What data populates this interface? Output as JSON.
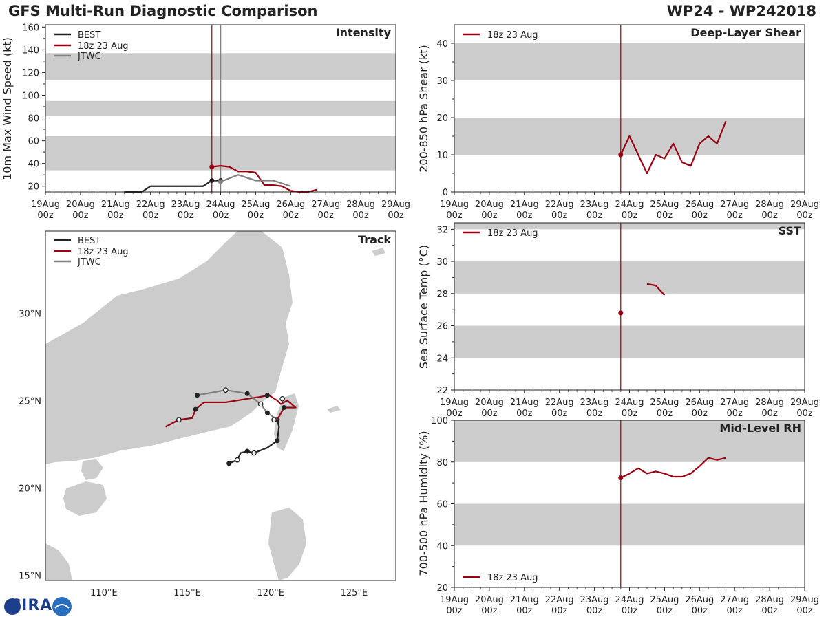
{
  "header": {
    "title": "GFS Multi-Run Diagnostic Comparison",
    "storm": "WP24 - WP242018"
  },
  "logo": {
    "text": "CIRA"
  },
  "time_axis": {
    "labels": [
      [
        "19Aug",
        "00z"
      ],
      [
        "20Aug",
        "00z"
      ],
      [
        "21Aug",
        "00z"
      ],
      [
        "22Aug",
        "00z"
      ],
      [
        "23Aug",
        "00z"
      ],
      [
        "24Aug",
        "00z"
      ],
      [
        "25Aug",
        "00z"
      ],
      [
        "26Aug",
        "00z"
      ],
      [
        "27Aug",
        "00z"
      ],
      [
        "28Aug",
        "00z"
      ],
      [
        "29Aug",
        "00z"
      ]
    ],
    "init_day": 4.75,
    "jtwc_day": 5.0
  },
  "legend": {
    "best": "BEST",
    "run": "18z 23 Aug",
    "jtwc": "JTWC"
  },
  "colors": {
    "best": "#222222",
    "run": "#990011",
    "jtwc": "#808080",
    "band": "#cccccc",
    "land": "#cccccc"
  },
  "chart_data": [
    {
      "name": "intensity",
      "type": "line",
      "title": "Intensity",
      "ylabel": "10m Max Wind Speed (kt)",
      "xlim": [
        0,
        10
      ],
      "ylim": [
        15,
        162
      ],
      "yticks": [
        20,
        40,
        60,
        80,
        100,
        120,
        140,
        160
      ],
      "bands": [
        [
          34,
          64
        ],
        [
          82,
          95
        ],
        [
          113,
          137
        ]
      ],
      "series": [
        {
          "name": "BEST",
          "color": "#222222",
          "x": [
            2.25,
            2.75,
            3.0,
            3.5,
            4.0,
            4.5,
            4.75,
            5.0
          ],
          "y": [
            15,
            15,
            20,
            20,
            20,
            20,
            25,
            25
          ],
          "markers": [
            4.75,
            5.0
          ]
        },
        {
          "name": "18z 23 Aug",
          "color": "#990011",
          "x": [
            4.75,
            5.0,
            5.25,
            5.5,
            5.75,
            6.0,
            6.25,
            6.5,
            6.75,
            7.0,
            7.25,
            7.5,
            7.75
          ],
          "y": [
            37,
            38,
            37,
            33,
            33,
            32,
            21,
            21,
            20,
            16,
            15,
            15,
            17
          ],
          "markers": [
            4.75
          ]
        },
        {
          "name": "JTWC",
          "color": "#808080",
          "x": [
            5.0,
            5.5,
            6.0,
            6.5,
            7.0
          ],
          "y": [
            24,
            30,
            25,
            25,
            20
          ],
          "markers": [
            5.0
          ]
        }
      ]
    },
    {
      "name": "shear",
      "type": "line",
      "title": "Deep-Layer Shear",
      "ylabel": "200-850 hPa Shear (kt)",
      "xlim": [
        0,
        10
      ],
      "ylim": [
        0,
        45
      ],
      "yticks": [
        0,
        10,
        20,
        30,
        40
      ],
      "bands": [
        [
          10,
          20
        ],
        [
          30,
          40
        ]
      ],
      "series": [
        {
          "name": "18z 23 Aug",
          "color": "#990011",
          "x": [
            4.75,
            5.0,
            5.25,
            5.5,
            5.75,
            6.0,
            6.25,
            6.5,
            6.75,
            7.0,
            7.25,
            7.5,
            7.75
          ],
          "y": [
            10,
            15,
            10,
            5,
            10,
            9,
            13,
            8,
            7,
            13,
            15,
            13,
            19
          ],
          "markers": [
            4.75
          ]
        }
      ]
    },
    {
      "name": "sst",
      "type": "line",
      "title": "SST",
      "ylabel": "Sea Surface Temp (°C)",
      "xlim": [
        0,
        10
      ],
      "ylim": [
        22,
        32.4
      ],
      "yticks": [
        22,
        24,
        26,
        28,
        30,
        32
      ],
      "bands": [
        [
          24,
          26
        ],
        [
          28,
          30
        ],
        [
          32,
          32.4
        ]
      ],
      "series": [
        {
          "name": "18z 23 Aug",
          "color": "#990011",
          "x": [
            4.75
          ],
          "y": [
            26.8
          ],
          "markers": [
            4.75
          ]
        },
        {
          "name": "18z 23 Aug (segment)",
          "color": "#990011",
          "x": [
            5.5,
            5.75,
            6.0
          ],
          "y": [
            28.6,
            28.5,
            27.9
          ],
          "markers": []
        }
      ]
    },
    {
      "name": "rh",
      "type": "line",
      "title": "Mid-Level RH",
      "ylabel": "700-500 hPa Humidity (%)",
      "xlim": [
        0,
        10
      ],
      "ylim": [
        20,
        100
      ],
      "yticks": [
        20,
        40,
        60,
        80,
        100
      ],
      "bands": [
        [
          40,
          60
        ],
        [
          80,
          100
        ]
      ],
      "series": [
        {
          "name": "18z 23 Aug",
          "color": "#990011",
          "x": [
            4.75,
            5.0,
            5.25,
            5.5,
            5.75,
            6.0,
            6.25,
            6.5,
            6.75,
            7.0,
            7.25,
            7.5,
            7.75
          ],
          "y": [
            72.5,
            74.5,
            77,
            74.5,
            75.5,
            74.5,
            73,
            73,
            74.5,
            78,
            82,
            81,
            82
          ],
          "markers": [
            4.75
          ]
        }
      ]
    },
    {
      "name": "track",
      "type": "scatter",
      "title": "Track",
      "xlim": [
        106.5,
        127.5
      ],
      "ylim": [
        14.7,
        34.7
      ],
      "xticks": [
        110,
        115,
        120,
        125
      ],
      "xtick_labels": [
        "110°E",
        "115°E",
        "120°E",
        "125°E"
      ],
      "yticks": [
        15,
        20,
        25,
        30
      ],
      "ytick_labels": [
        "15°N",
        "20°N",
        "25°N",
        "30°N"
      ],
      "series": [
        {
          "name": "BEST",
          "color": "#222222",
          "points": [
            [
              117.5,
              21.4
            ],
            [
              118.0,
              21.6
            ],
            [
              118.2,
              22.0
            ],
            [
              118.6,
              22.1
            ],
            [
              119.0,
              22.0
            ],
            [
              119.8,
              22.3
            ],
            [
              120.4,
              22.7
            ],
            [
              120.5,
              23.5
            ],
            [
              120.4,
              23.9
            ]
          ],
          "filled": [
            [
              117.5,
              21.4
            ],
            [
              118.6,
              22.1
            ],
            [
              120.4,
              22.7
            ],
            [
              120.4,
              23.9
            ]
          ],
          "open": [
            [
              118.0,
              21.6
            ],
            [
              119.0,
              22.0
            ]
          ]
        },
        {
          "name": "18z 23 Aug",
          "color": "#990011",
          "points": [
            [
              120.4,
              23.9
            ],
            [
              120.8,
              24.6
            ],
            [
              121.5,
              24.6
            ],
            [
              121.0,
              25.0
            ],
            [
              120.6,
              24.8
            ],
            [
              120.4,
              25.0
            ],
            [
              119.9,
              25.3
            ],
            [
              119.3,
              25.2
            ],
            [
              118.6,
              25.1
            ],
            [
              117.3,
              24.9
            ],
            [
              116.0,
              24.9
            ],
            [
              115.5,
              24.5
            ],
            [
              115.3,
              24.0
            ],
            [
              114.5,
              23.9
            ],
            [
              113.7,
              23.5
            ]
          ],
          "filled": [
            [
              120.8,
              24.6
            ],
            [
              119.8,
              25.3
            ],
            [
              115.5,
              24.5
            ]
          ],
          "open": [
            [
              114.5,
              23.9
            ]
          ]
        },
        {
          "name": "JTWC",
          "color": "#808080",
          "points": [
            [
              120.4,
              23.9
            ],
            [
              119.8,
              24.3
            ],
            [
              119.4,
              24.8
            ],
            [
              118.6,
              25.4
            ],
            [
              117.3,
              25.6
            ],
            [
              115.6,
              25.3
            ]
          ],
          "filled": [
            [
              119.8,
              24.3
            ],
            [
              118.6,
              25.4
            ],
            [
              115.6,
              25.3
            ]
          ],
          "open": [
            [
              119.4,
              24.8
            ],
            [
              117.3,
              25.6
            ],
            [
              120.7,
              25.1
            ],
            [
              120.2,
              23.9
            ]
          ]
        }
      ]
    }
  ]
}
